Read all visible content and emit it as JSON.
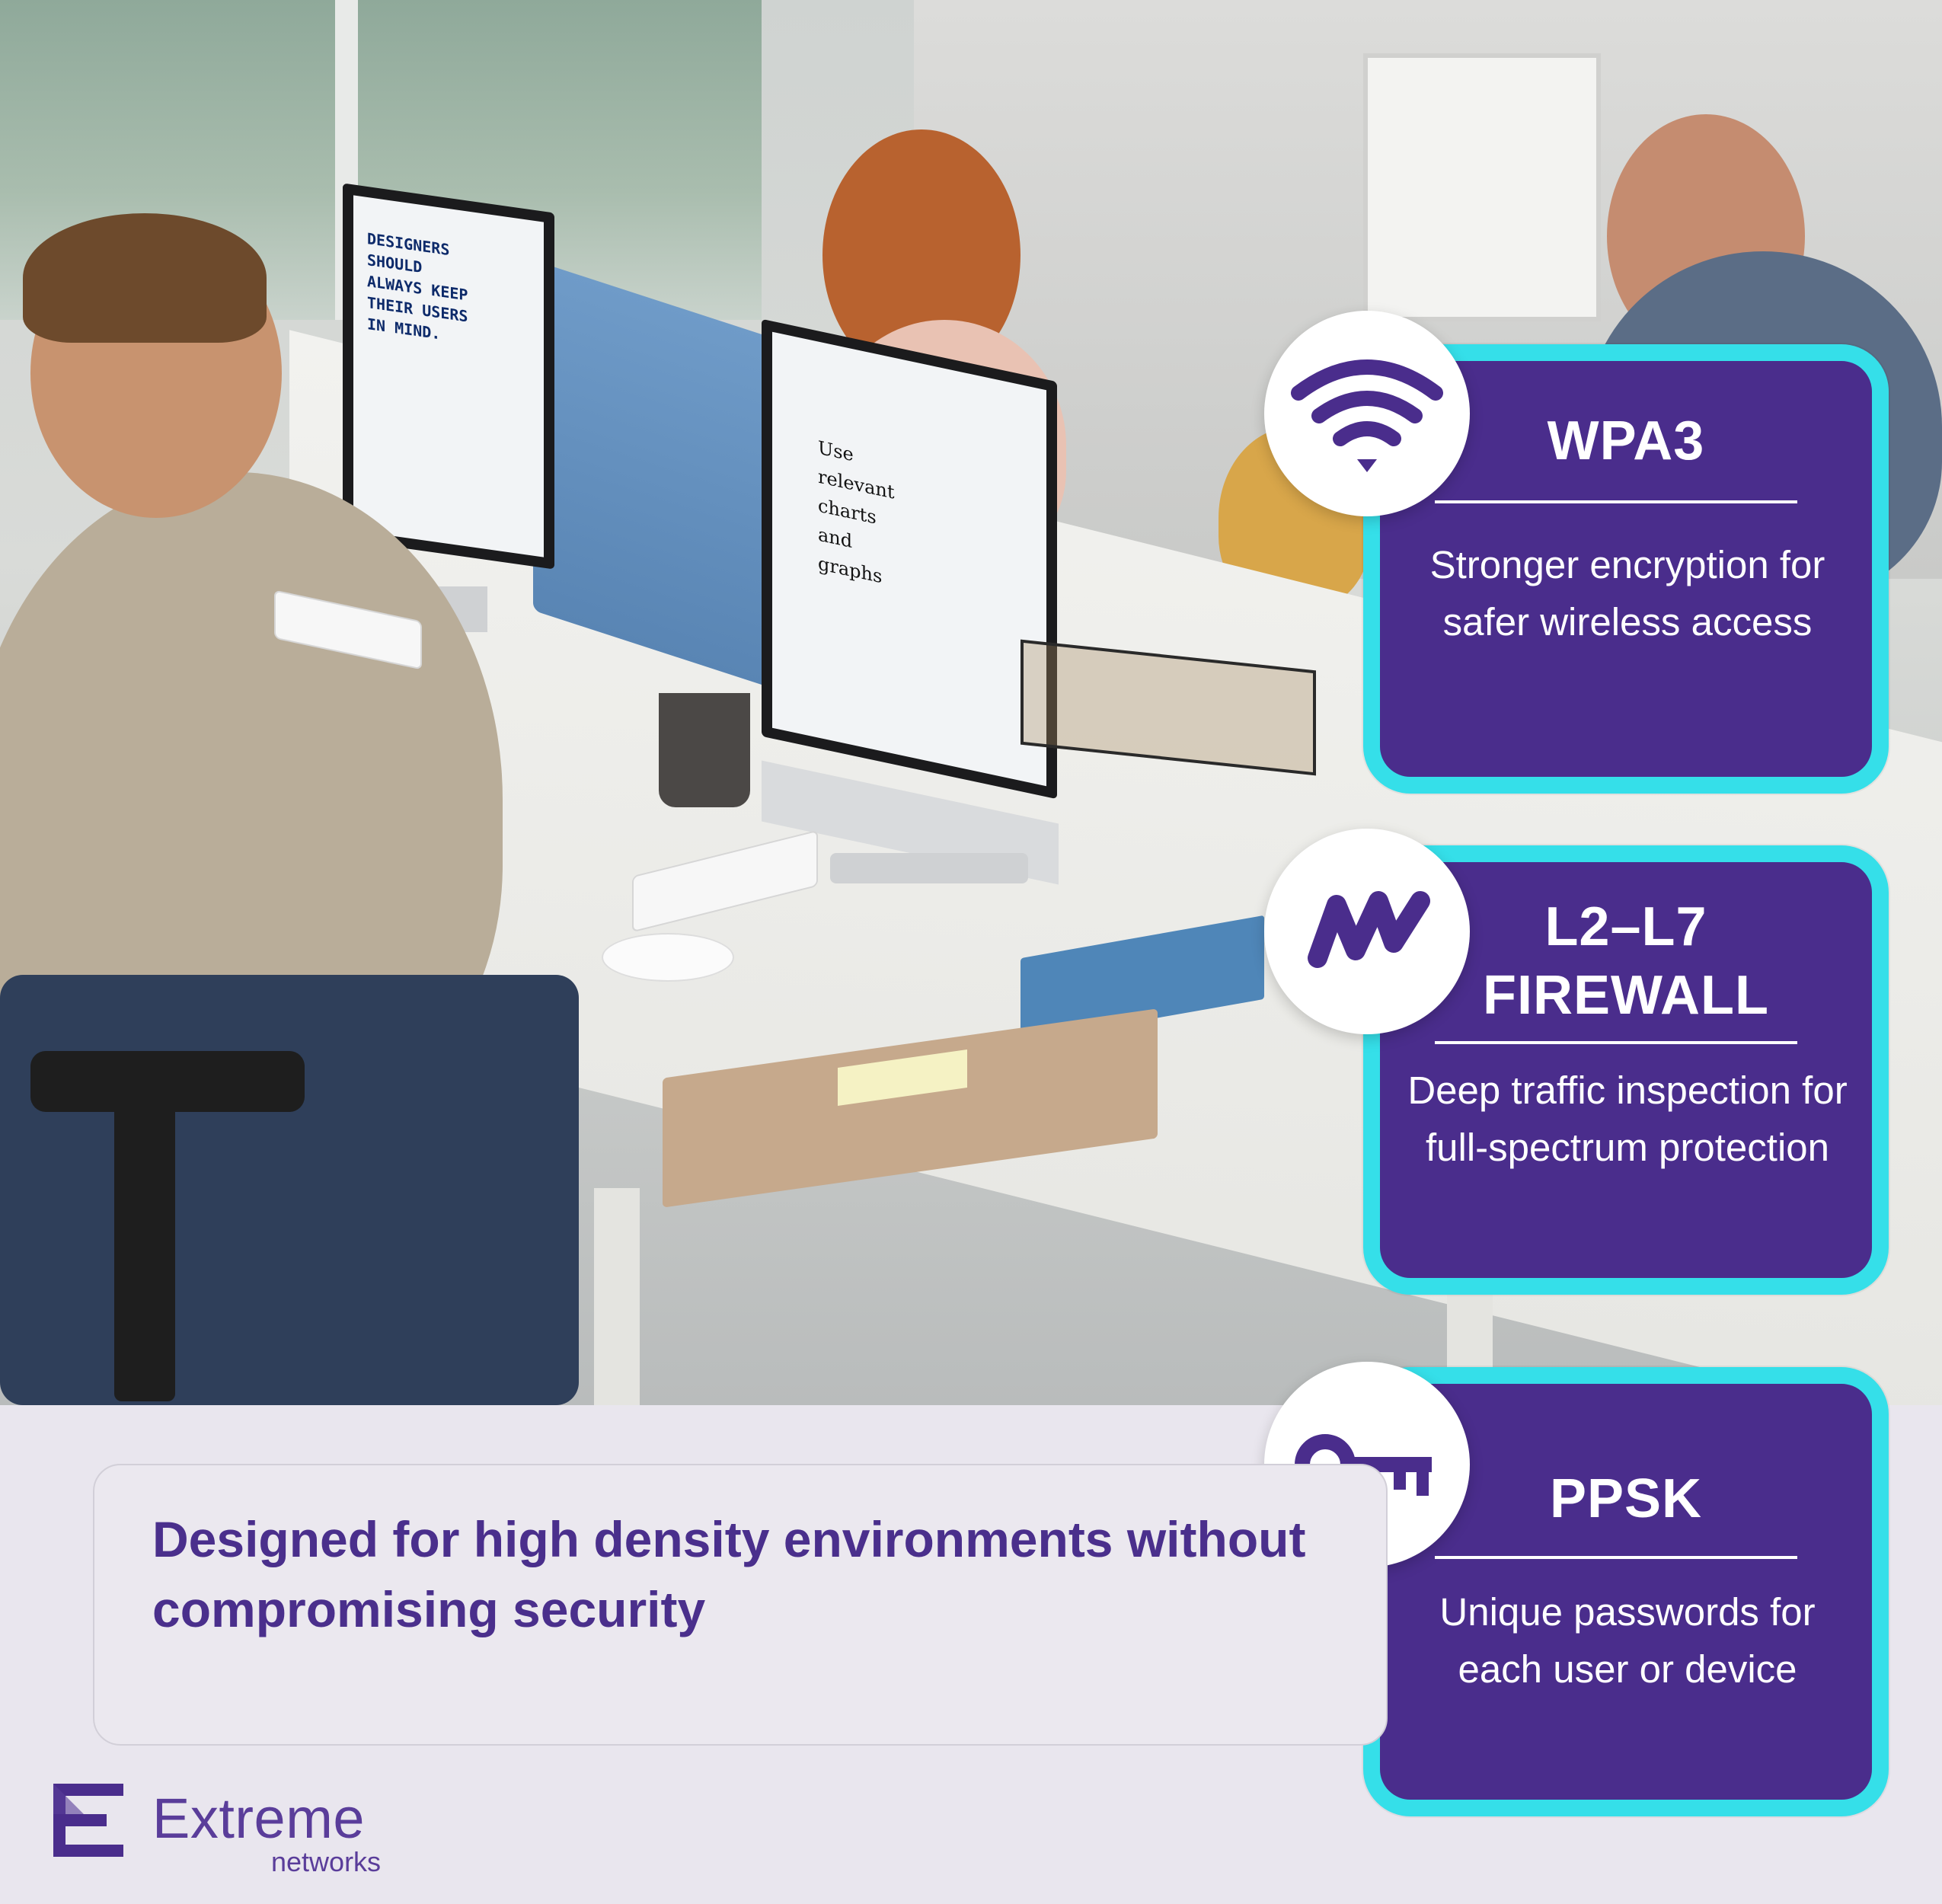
{
  "features": [
    {
      "title": "WPA3",
      "description": "Stronger encryption for safer wireless access",
      "icon": "wifi-icon"
    },
    {
      "title_line1": "L2–L7",
      "title_line2": "FIREWALL",
      "description": "Deep traffic inspection for full-spectrum protection",
      "icon": "extreme-w-icon"
    },
    {
      "title": "PPSK",
      "description": "Unique passwords for each user or device",
      "icon": "key-icon"
    }
  ],
  "tagline": "Designed for high density environments without compromising security",
  "logo": {
    "name": "Extreme",
    "sub": "networks"
  },
  "photo_screens": {
    "left_monitor": "DESIGNERS SHOULD ALWAYS KEEP THEIR USERS IN MIND.",
    "front_monitor": "Use relevant charts and graphs"
  },
  "colors": {
    "brand_purple": "#4a2d8c",
    "accent_cyan": "#35dfe9",
    "text_purple": "#4a2f8c",
    "background": "#e9e6ee"
  }
}
